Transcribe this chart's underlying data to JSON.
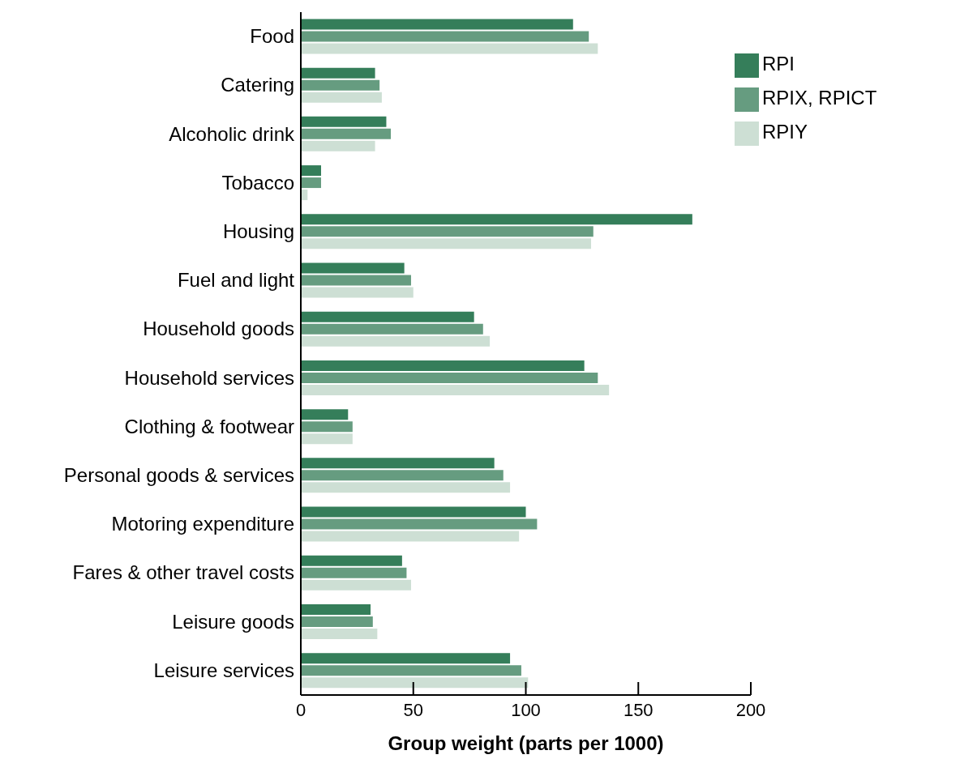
{
  "chart_data": {
    "type": "bar",
    "orientation": "horizontal",
    "xlabel": "Group weight (parts per 1000)",
    "categories": [
      "Food",
      "Catering",
      "Alcoholic drink",
      "Tobacco",
      "Housing",
      "Fuel and light",
      "Household goods",
      "Household services",
      "Clothing & footwear",
      "Personal goods & services",
      "Motoring expenditure",
      "Fares & other travel costs",
      "Leisure goods",
      "Leisure services"
    ],
    "series": [
      {
        "name": "RPI",
        "color": "#357e5a",
        "values": [
          121,
          33,
          38,
          9,
          174,
          46,
          77,
          126,
          21,
          86,
          100,
          45,
          31,
          93
        ]
      },
      {
        "name": "RPIX, RPICT",
        "color": "#669c80",
        "values": [
          128,
          35,
          40,
          9,
          130,
          49,
          81,
          132,
          23,
          90,
          105,
          47,
          32,
          98
        ]
      },
      {
        "name": "RPIY",
        "color": "#cddfd4",
        "values": [
          132,
          36,
          33,
          3,
          129,
          50,
          84,
          137,
          23,
          93,
          97,
          49,
          34,
          101
        ]
      }
    ],
    "xlim": [
      0,
      200
    ],
    "xticks": [
      0,
      50,
      100,
      150,
      200
    ],
    "grid": false,
    "legend": "top right"
  }
}
